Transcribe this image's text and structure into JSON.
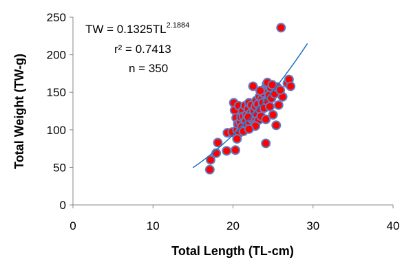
{
  "chart_data": {
    "type": "scatter",
    "xlabel": "Total Length (TL-cm)",
    "ylabel": "Total Weight (TW-g)",
    "xlim": [
      0,
      40
    ],
    "ylim": [
      0,
      250
    ],
    "x_ticks": [
      "0",
      "10",
      "20",
      "30",
      "40"
    ],
    "y_ticks": [
      "0",
      "50",
      "100",
      "150",
      "200",
      "250"
    ],
    "grid": false,
    "annotations": {
      "equation_base": "TW = 0.1325TL",
      "equation_exponent": "2.1884",
      "r_squared": "r² = 0.7413",
      "n": "n = 350"
    },
    "trendline": {
      "type": "power",
      "a": 0.1325,
      "b": 2.1884,
      "x_range": [
        15,
        29.3
      ]
    },
    "series": [
      {
        "marker_fill": "#ff0000",
        "marker_edge": "#5b7fc4",
        "points": [
          [
            17.1,
            47
          ],
          [
            17.2,
            60
          ],
          [
            17.9,
            69
          ],
          [
            18.1,
            83
          ],
          [
            19.2,
            72
          ],
          [
            19.3,
            96
          ],
          [
            19.9,
            97
          ],
          [
            20.1,
            136
          ],
          [
            20.2,
            126
          ],
          [
            20.3,
            73
          ],
          [
            20.4,
            116
          ],
          [
            20.5,
            100
          ],
          [
            20.6,
            108
          ],
          [
            20.7,
            132
          ],
          [
            20.8,
            96
          ],
          [
            20.9,
            110
          ],
          [
            21.0,
            117
          ],
          [
            21.1,
            104
          ],
          [
            21.2,
            125
          ],
          [
            21.3,
            118
          ],
          [
            21.4,
            101
          ],
          [
            21.5,
            132
          ],
          [
            21.6,
            112
          ],
          [
            21.7,
            120
          ],
          [
            21.8,
            106
          ],
          [
            21.9,
            128
          ],
          [
            22.0,
            136
          ],
          [
            22.1,
            109
          ],
          [
            22.2,
            122
          ],
          [
            22.3,
            133
          ],
          [
            22.4,
            114
          ],
          [
            22.5,
            158
          ],
          [
            22.6,
            126
          ],
          [
            22.7,
            107
          ],
          [
            22.8,
            131
          ],
          [
            22.9,
            139
          ],
          [
            23.0,
            120
          ],
          [
            23.1,
            134
          ],
          [
            23.2,
            113
          ],
          [
            23.3,
            144
          ],
          [
            23.4,
            127
          ],
          [
            23.5,
            118
          ],
          [
            23.6,
            141
          ],
          [
            23.7,
            136
          ],
          [
            23.8,
            149
          ],
          [
            23.9,
            129
          ],
          [
            24.0,
            155
          ],
          [
            24.1,
            114
          ],
          [
            24.2,
            161
          ],
          [
            24.3,
            138
          ],
          [
            24.4,
            150
          ],
          [
            24.5,
            146
          ],
          [
            24.6,
            131
          ],
          [
            24.7,
            156
          ],
          [
            24.8,
            142
          ],
          [
            25.0,
            120
          ],
          [
            25.2,
            148
          ],
          [
            25.4,
            106
          ],
          [
            25.5,
            157
          ],
          [
            25.7,
            133
          ],
          [
            26.0,
            236
          ],
          [
            26.2,
            144
          ],
          [
            24.1,
            82
          ],
          [
            26.8,
            162
          ],
          [
            27.0,
            167
          ],
          [
            27.2,
            158
          ],
          [
            24.3,
            163
          ],
          [
            25.9,
            153
          ],
          [
            21.3,
            98
          ],
          [
            22.8,
            105
          ],
          [
            20.5,
            88
          ],
          [
            23.4,
            152
          ],
          [
            24.9,
            160
          ],
          [
            22.0,
            101
          ],
          [
            21.9,
            117
          ]
        ]
      }
    ]
  }
}
